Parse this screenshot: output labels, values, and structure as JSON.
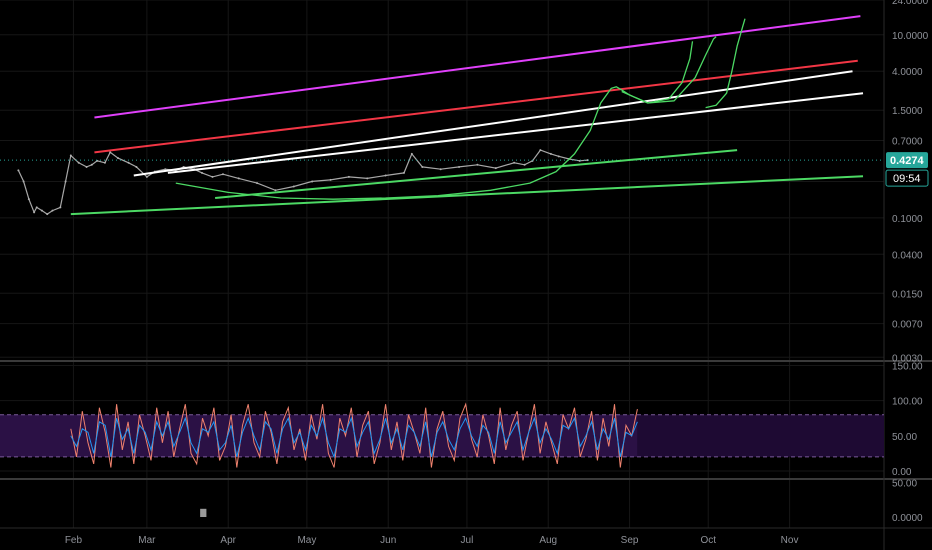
{
  "chart_data": {
    "type": "line",
    "price_panel": {
      "scale": "log",
      "y_ticks": [
        "24.0000",
        "10.0000",
        "4.0000",
        "1.5000",
        "0.7000",
        "0.2500",
        "0.1000",
        "0.0400",
        "0.0150",
        "0.0070",
        "0.0030"
      ],
      "y_tick_values": [
        24,
        10,
        4,
        1.5,
        0.7,
        0.25,
        0.1,
        0.04,
        0.015,
        0.007,
        0.003
      ],
      "ylim": [
        0.0028,
        24
      ],
      "price_label": "0.4274",
      "price_value": 0.4274,
      "countdown_label": "09:54",
      "price_color": "#26a69a",
      "series": [
        {
          "x": [
            0,
            2,
            4,
            6,
            7,
            9,
            11,
            13,
            16,
            18,
            20,
            23,
            26,
            28,
            30,
            33,
            35,
            38,
            42,
            45,
            49,
            52,
            56,
            60,
            63,
            67,
            70,
            74,
            78,
            84,
            91,
            98,
            105,
            112,
            119,
            126,
            133,
            140,
            147,
            150,
            154,
            161,
            168,
            175,
            182,
            189,
            193,
            196,
            199,
            203,
            206,
            210,
            214,
            217
          ],
          "close": [
            0.33,
            0.25,
            0.16,
            0.115,
            0.13,
            0.12,
            0.11,
            0.12,
            0.13,
            0.25,
            0.48,
            0.4,
            0.36,
            0.38,
            0.42,
            0.4,
            0.52,
            0.45,
            0.4,
            0.36,
            0.28,
            0.32,
            0.34,
            0.33,
            0.36,
            0.34,
            0.31,
            0.28,
            0.3,
            0.27,
            0.24,
            0.2,
            0.22,
            0.25,
            0.26,
            0.28,
            0.27,
            0.29,
            0.31,
            0.5,
            0.36,
            0.34,
            0.36,
            0.38,
            0.35,
            0.4,
            0.38,
            0.42,
            0.55,
            0.5,
            0.47,
            0.44,
            0.42,
            0.4274
          ]
        }
      ],
      "trendlines": [
        {
          "color": "#e040fb",
          "x": [
            29,
            321
          ],
          "y": [
            1.25,
            16
          ]
        },
        {
          "color": "#f23645",
          "x": [
            29,
            320
          ],
          "y": [
            0.52,
            5.2
          ]
        },
        {
          "color": "#ffffff",
          "x": [
            44,
            318
          ],
          "y": [
            0.29,
            4.0
          ]
        },
        {
          "color": "#ffffff",
          "x": [
            57,
            322
          ],
          "y": [
            0.31,
            2.3
          ]
        },
        {
          "color": "#4cd964",
          "x": [
            20,
            322
          ],
          "y": [
            0.11,
            0.285
          ]
        },
        {
          "color": "#4cd964",
          "x": [
            75,
            274
          ],
          "y": [
            0.165,
            0.55
          ]
        }
      ],
      "projections": [
        {
          "color": "#4cd964",
          "x": [
            60,
            80,
            100,
            120,
            140,
            160,
            180,
            195,
            205,
            212,
            218,
            222,
            226,
            228,
            230,
            233,
            240,
            250,
            258,
            262,
            265,
            266
          ],
          "y": [
            0.24,
            0.19,
            0.165,
            0.16,
            0.165,
            0.175,
            0.2,
            0.24,
            0.32,
            0.5,
            0.9,
            1.8,
            2.6,
            2.7,
            2.5,
            2.2,
            1.8,
            1.9,
            3.4,
            6.0,
            9.0,
            9.5
          ]
        },
        {
          "color": "#4cd964",
          "x": [
            230,
            240,
            248,
            253,
            256,
            257
          ],
          "y": [
            2.4,
            1.8,
            2.0,
            3.0,
            5.5,
            8.5
          ]
        },
        {
          "color": "#4cd964",
          "x": [
            262,
            266,
            270,
            272,
            274,
            276,
            277
          ],
          "y": [
            1.6,
            1.7,
            2.3,
            4.0,
            7.5,
            12,
            15
          ]
        }
      ]
    },
    "oscillator_panel": {
      "y_ticks": [
        "150.00",
        "100.00",
        "50.00",
        "0.00"
      ],
      "y_tick_values": [
        150,
        100,
        50,
        0
      ],
      "ylim": [
        -10,
        155
      ],
      "band": [
        20,
        80
      ],
      "series": [
        {
          "color": "#f0826e",
          "values": [
            60,
            20,
            85,
            40,
            10,
            90,
            55,
            5,
            95,
            30,
            70,
            10,
            80,
            50,
            15,
            90,
            40,
            85,
            20,
            60,
            95,
            25,
            10,
            75,
            50,
            90,
            15,
            35,
            80,
            5,
            65,
            95,
            40,
            20,
            85,
            55,
            10,
            70,
            90,
            30,
            60,
            15,
            80,
            45,
            95,
            25,
            5,
            75,
            50,
            90,
            20,
            65,
            85,
            10,
            40,
            95,
            30,
            70,
            15,
            80,
            55,
            25,
            90,
            5,
            60,
            85,
            35,
            15,
            75,
            95,
            45,
            20,
            80,
            50,
            10,
            90,
            30,
            65,
            85,
            15,
            55,
            95,
            25,
            70,
            40,
            10,
            80,
            60,
            90,
            20,
            45,
            85,
            15,
            75,
            35,
            95,
            5,
            65,
            50,
            88
          ]
        },
        {
          "color": "#2196f3",
          "values": [
            50,
            35,
            60,
            55,
            25,
            70,
            65,
            20,
            75,
            45,
            60,
            25,
            65,
            55,
            30,
            70,
            50,
            70,
            35,
            55,
            75,
            40,
            25,
            60,
            55,
            70,
            30,
            40,
            65,
            20,
            55,
            75,
            50,
            30,
            70,
            60,
            25,
            60,
            75,
            40,
            55,
            30,
            65,
            50,
            75,
            40,
            20,
            60,
            55,
            75,
            35,
            55,
            70,
            25,
            45,
            75,
            40,
            60,
            30,
            65,
            55,
            35,
            70,
            20,
            55,
            70,
            45,
            30,
            60,
            75,
            50,
            35,
            65,
            55,
            25,
            70,
            40,
            55,
            70,
            30,
            55,
            75,
            40,
            60,
            45,
            25,
            65,
            60,
            75,
            35,
            50,
            70,
            30,
            60,
            45,
            75,
            20,
            55,
            50,
            70
          ]
        }
      ]
    },
    "volume_panel": {
      "y_ticks": [
        "50.00",
        "0.0000"
      ],
      "y_tick_values": [
        50,
        0
      ],
      "ylim": [
        0,
        55
      ],
      "colors": {
        "up": "#22ee22",
        "down": "#9a9a9a"
      },
      "values": [
        6,
        5,
        7,
        5,
        6,
        4,
        5,
        6,
        7,
        5,
        4,
        6,
        8,
        6,
        5,
        7,
        6,
        9,
        22,
        12,
        8,
        7,
        6,
        6,
        5,
        4,
        5,
        6,
        5,
        4,
        3,
        4,
        4,
        5,
        4,
        3,
        4,
        4,
        3,
        4,
        5,
        6,
        5,
        4,
        5,
        6,
        5,
        4,
        4,
        5,
        6,
        5,
        5,
        4,
        5,
        6,
        5,
        4,
        5,
        4,
        5,
        5,
        6,
        4,
        5,
        5,
        4,
        6,
        5,
        4,
        6,
        7,
        5,
        5,
        6,
        7,
        6,
        5
      ],
      "up": [
        0,
        1,
        0,
        0,
        1,
        0,
        1,
        0,
        1,
        0,
        1,
        0,
        1,
        1,
        0,
        1,
        0,
        0,
        0,
        0,
        1,
        0,
        0,
        1,
        0,
        1,
        0,
        1,
        0,
        0,
        1,
        0,
        1,
        0,
        1,
        1,
        0,
        0,
        1,
        0,
        1,
        0,
        1,
        0,
        0,
        1,
        0,
        1,
        0,
        1,
        1,
        0,
        1,
        0,
        0,
        1,
        0,
        1,
        0,
        1,
        0,
        0,
        1,
        0,
        1,
        0,
        1,
        1,
        0,
        1,
        1,
        0,
        1,
        1,
        0,
        1,
        1,
        0
      ]
    },
    "x_ticks": [
      "Feb",
      "Mar",
      "Apr",
      "May",
      "Jun",
      "Jul",
      "Aug",
      "Sep",
      "Oct",
      "Nov"
    ],
    "x_tick_values": [
      21,
      49,
      80,
      110,
      141,
      171,
      202,
      233,
      263,
      294
    ],
    "xlim": [
      -7,
      330
    ],
    "grid": true
  }
}
